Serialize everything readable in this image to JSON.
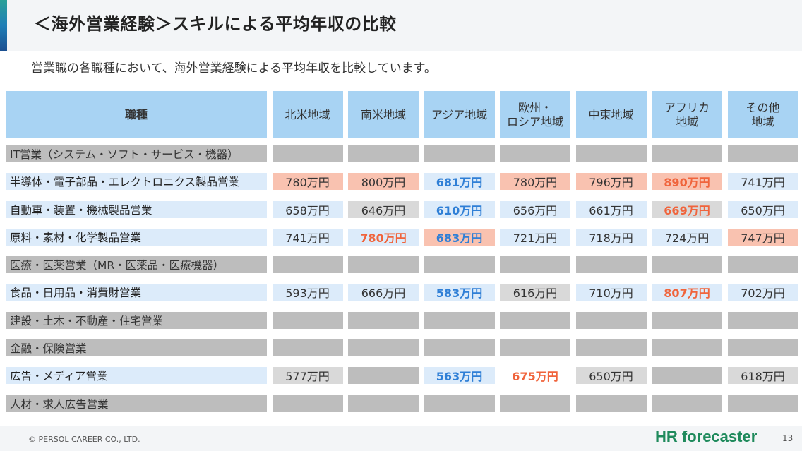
{
  "title": "＜海外営業経験＞スキルによる平均年収の比較",
  "subtitle": "営業職の各職種において、海外営業経験による平均年収を比較しています。",
  "table": {
    "header": [
      "職種",
      "北米地域",
      "南米地域",
      "アジア地域",
      "欧州・\nロシア地域",
      "中東地域",
      "アフリカ\n地域",
      "その他\n地域"
    ],
    "rows": [
      {
        "label": "IT営業（システム・ソフト・サービス・機器）",
        "values": [
          "",
          "",
          "",
          "",
          "",
          "",
          ""
        ],
        "styles": [
          "na",
          "na",
          "na",
          "na",
          "na",
          "na",
          "na"
        ]
      },
      {
        "label": "半導体・電子部品・エレクトロニクス製品営業",
        "values": [
          "780万円",
          "800万円",
          "681万円",
          "780万円",
          "796万円",
          "890万円",
          "741万円"
        ],
        "styles": [
          "salmon",
          "salmon",
          "blue hi-blue",
          "salmon",
          "salmon",
          "salmon hi-red",
          "blue"
        ]
      },
      {
        "label": "自動車・装置・機械製品営業",
        "values": [
          "658万円",
          "646万円",
          "610万円",
          "656万円",
          "661万円",
          "669万円",
          "650万円"
        ],
        "styles": [
          "blue",
          "gray",
          "blue hi-blue",
          "blue",
          "blue",
          "gray hi-red",
          "blue"
        ]
      },
      {
        "label": "原料・素材・化学製品営業",
        "values": [
          "741万円",
          "780万円",
          "683万円",
          "721万円",
          "718万円",
          "724万円",
          "747万円"
        ],
        "styles": [
          "blue",
          "blue hi-red",
          "salmon hi-blue",
          "blue",
          "blue",
          "blue",
          "salmon"
        ]
      },
      {
        "label": "医療・医薬営業（MR・医薬品・医療機器）",
        "values": [
          "",
          "",
          "",
          "",
          "",
          "",
          ""
        ],
        "styles": [
          "na",
          "na",
          "na",
          "na",
          "na",
          "na",
          "na"
        ]
      },
      {
        "label": "食品・日用品・消費財営業",
        "values": [
          "593万円",
          "666万円",
          "583万円",
          "616万円",
          "710万円",
          "807万円",
          "702万円"
        ],
        "styles": [
          "blue",
          "blue",
          "blue hi-blue",
          "gray",
          "blue",
          "blue hi-red",
          "blue"
        ]
      },
      {
        "label": "建設・土木・不動産・住宅営業",
        "values": [
          "",
          "",
          "",
          "",
          "",
          "",
          ""
        ],
        "styles": [
          "na",
          "na",
          "na",
          "na",
          "na",
          "na",
          "na"
        ]
      },
      {
        "label": "金融・保険営業",
        "values": [
          "",
          "",
          "",
          "",
          "",
          "",
          ""
        ],
        "styles": [
          "na",
          "na",
          "na",
          "na",
          "na",
          "na",
          "na"
        ]
      },
      {
        "label": "広告・メディア営業",
        "values": [
          "577万円",
          "",
          "563万円",
          "675万円",
          "650万円",
          "",
          "618万円"
        ],
        "styles": [
          "gray",
          "na",
          "blue hi-blue",
          "white hi-red",
          "gray",
          "na",
          "gray"
        ]
      },
      {
        "label": "人材・求人広告営業",
        "values": [
          "",
          "",
          "",
          "",
          "",
          "",
          ""
        ],
        "styles": [
          "na",
          "na",
          "na",
          "na",
          "na",
          "na",
          "na"
        ]
      }
    ]
  },
  "footer": {
    "copyright": "© PERSOL CAREER CO., LTD.",
    "logo": "HR forecaster",
    "page": "13"
  },
  "colors": {
    "header_bg": "#a8d3f3",
    "na": "#bdbdbd",
    "blue_cell": "#dcebfa",
    "gray_cell": "#d9d9d9",
    "salmon_cell": "#f9c2b0",
    "highlight_blue": "#2f7fd6",
    "highlight_red": "#f0643c",
    "logo_green": "#1f8a5c"
  }
}
